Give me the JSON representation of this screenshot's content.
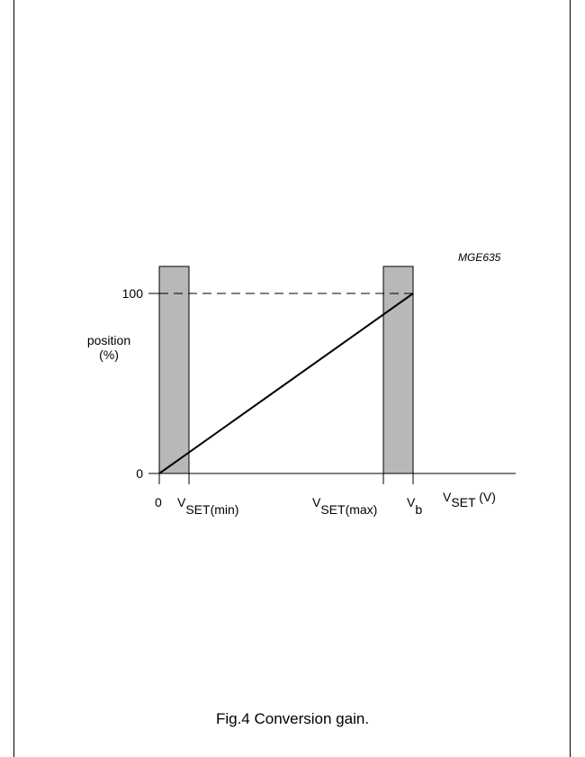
{
  "figure": {
    "code": "MGE635",
    "caption": "Fig.4  Conversion gain."
  },
  "y_axis": {
    "label_line1": "position",
    "label_line2": "(%)",
    "ticks": [
      "100",
      "0"
    ]
  },
  "x_axis": {
    "label_main": "V",
    "label_sub": "SET",
    "label_unit": " (V)",
    "ticks": [
      {
        "main": "0",
        "sub": ""
      },
      {
        "main": "V",
        "sub": "SET(min)"
      },
      {
        "main": "V",
        "sub": "SET(max)"
      },
      {
        "main": "V",
        "sub": "b"
      }
    ]
  },
  "colors": {
    "band_fill": "#b8b8b8",
    "line": "#000000"
  },
  "chart_data": {
    "type": "line",
    "series": [
      {
        "points": [
          [
            0,
            0
          ],
          [
            100,
            100
          ]
        ]
      }
    ],
    "reference_line": {
      "y": 100,
      "style": "dashed"
    },
    "shaded_bands": [
      "0 to VSET(min)",
      "VSET(max) to Vb"
    ]
  }
}
